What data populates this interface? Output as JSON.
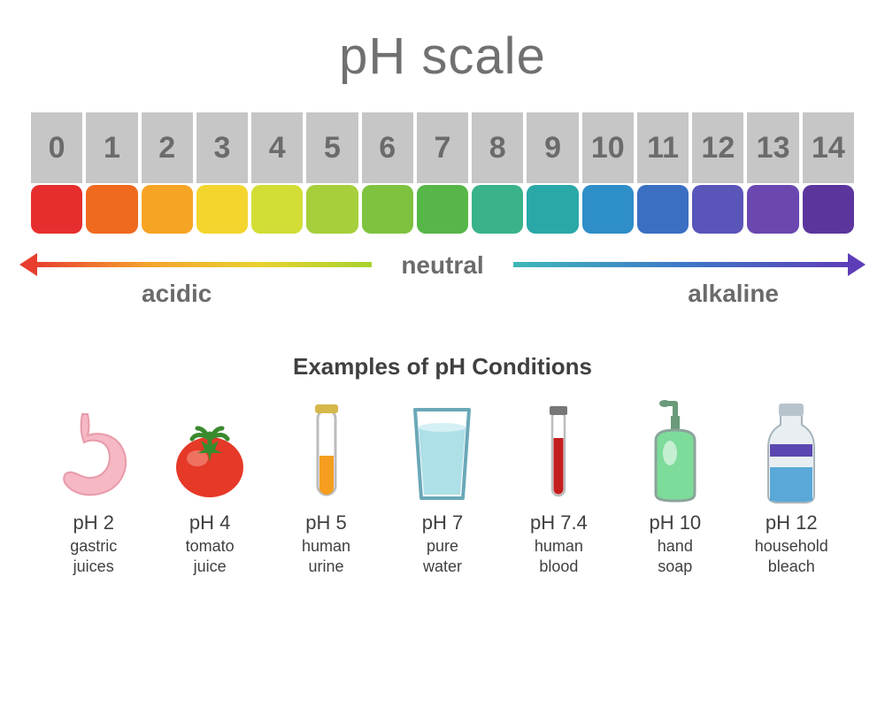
{
  "title": "pH scale",
  "title_color": "#707070",
  "title_fontsize": 58,
  "background_color": "#ffffff",
  "scale": {
    "number_bg": "#c6c6c6",
    "number_color": "#6b6b6b",
    "number_fontsize": 34,
    "numbers": [
      "0",
      "1",
      "2",
      "3",
      "4",
      "5",
      "6",
      "7",
      "8",
      "9",
      "10",
      "11",
      "12",
      "13",
      "14"
    ],
    "colors": [
      "#e62e2e",
      "#ef6a1f",
      "#f6a423",
      "#f3d52e",
      "#d2de36",
      "#a6cf3b",
      "#7ec23f",
      "#56b748",
      "#3ab38a",
      "#2aa8a8",
      "#2e8ec8",
      "#3a6fc2",
      "#5a55b8",
      "#6b48b0",
      "#5c359c"
    ],
    "color_box_radius": 10
  },
  "arrow": {
    "neutral_label": "neutral",
    "acidic_label": "acidic",
    "alkaline_label": "alkaline",
    "label_color": "#6b6b6b",
    "label_fontsize": 28,
    "left_gradient": [
      "#e83e2e",
      "#f4a32e",
      "#e8d22e",
      "#a8d22e"
    ],
    "right_gradient": [
      "#3eb8b8",
      "#3e78c8",
      "#5e3eb8"
    ]
  },
  "examples_title": "Examples of pH Conditions",
  "examples_title_fontsize": 26,
  "examples_title_color": "#404040",
  "examples": [
    {
      "ph": "pH 2",
      "name": "gastric\njuices",
      "icon": "stomach",
      "colors": {
        "main": "#f5b8c4",
        "outline": "#e89aaa"
      }
    },
    {
      "ph": "pH 4",
      "name": "tomato\njuice",
      "icon": "tomato",
      "colors": {
        "main": "#e63927",
        "leaf": "#3a8a2e",
        "highlight": "#f28a7a"
      }
    },
    {
      "ph": "pH 5",
      "name": "human\nurine",
      "icon": "testtube",
      "colors": {
        "liquid": "#f59e1f",
        "tube": "#bcbcbc",
        "cap": "#d6b84a"
      }
    },
    {
      "ph": "pH 7",
      "name": "pure\nwater",
      "icon": "glass",
      "colors": {
        "water": "#aee0e8",
        "glass": "#6aa8b8"
      }
    },
    {
      "ph": "pH 7.4",
      "name": "human\nblood",
      "icon": "bloodtube",
      "colors": {
        "liquid": "#c41e1e",
        "tube": "#bcbcbc",
        "cap": "#777777"
      }
    },
    {
      "ph": "pH 10",
      "name": "hand\nsoap",
      "icon": "soap",
      "colors": {
        "bottle": "#7ddc9a",
        "outline": "#8aa49a",
        "pump": "#6a9a7a"
      }
    },
    {
      "ph": "pH 12",
      "name": "household\nbleach",
      "icon": "bleach",
      "colors": {
        "bottle": "#e8eef2",
        "liquid": "#5aa8d8",
        "label": "#5a48b0",
        "cap": "#b8c4cc"
      }
    }
  ],
  "example_ph_fontsize": 22,
  "example_name_fontsize": 18,
  "example_text_color": "#404040"
}
